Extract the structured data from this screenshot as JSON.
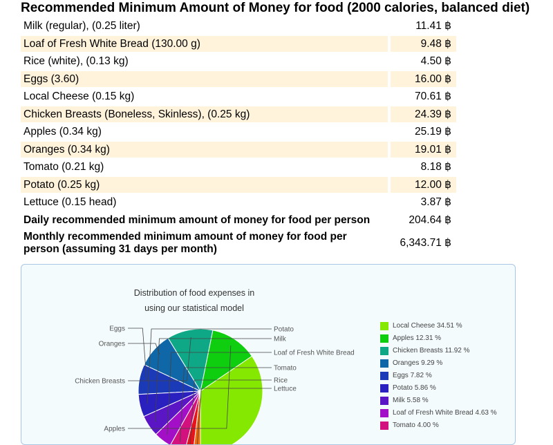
{
  "page": {
    "title": "Recommended Minimum Amount of Money for food (2000 calories, balanced diet)"
  },
  "items": [
    {
      "label": "Milk (regular), (0.25 liter)",
      "value": "11.41 ฿"
    },
    {
      "label": "Loaf of Fresh White Bread (130.00 g)",
      "value": "9.48 ฿"
    },
    {
      "label": "Rice (white), (0.13 kg)",
      "value": "4.50 ฿"
    },
    {
      "label": "Eggs (3.60)",
      "value": "16.00 ฿"
    },
    {
      "label": "Local Cheese (0.15 kg)",
      "value": "70.61 ฿"
    },
    {
      "label": "Chicken Breasts (Boneless, Skinless), (0.25 kg)",
      "value": "24.39 ฿"
    },
    {
      "label": "Apples (0.34 kg)",
      "value": "25.19 ฿"
    },
    {
      "label": "Oranges (0.34 kg)",
      "value": "19.01 ฿"
    },
    {
      "label": "Tomato (0.21 kg)",
      "value": "8.18 ฿"
    },
    {
      "label": "Potato (0.25 kg)",
      "value": "12.00 ฿"
    },
    {
      "label": "Lettuce (0.15 head)",
      "value": "3.87 ฿"
    }
  ],
  "daily": {
    "label": "Daily recommended minimum amount of money for food per person",
    "value": "204.64 ฿"
  },
  "monthly": {
    "label": "Monthly recommended minimum amount of money for food per person (assuming 31 days per month)",
    "value": "6,343.71 ฿"
  },
  "chart_data": {
    "type": "pie",
    "title": "Distribution of food expenses in using our statistical model",
    "slices": [
      {
        "name": "Local Cheese",
        "value": 34.51,
        "legend": "Local Cheese  34.51 %",
        "color": "#84e800"
      },
      {
        "name": "Apples",
        "value": 12.31,
        "legend": "Apples  12.31 %",
        "color": "#0fce0f"
      },
      {
        "name": "Chicken Breasts",
        "value": 11.92,
        "legend": "Chicken Breasts  11.92 %",
        "color": "#0ea887"
      },
      {
        "name": "Oranges",
        "value": 9.29,
        "legend": "Oranges  9.29 %",
        "color": "#1067a8"
      },
      {
        "name": "Eggs",
        "value": 7.82,
        "legend": "Eggs  7.82 %",
        "color": "#1a3ab8"
      },
      {
        "name": "Potato",
        "value": 5.86,
        "legend": "Potato  5.86 %",
        "color": "#2a1fbf"
      },
      {
        "name": "Milk",
        "value": 5.58,
        "legend": "Milk  5.58 %",
        "color": "#5a16c4"
      },
      {
        "name": "Loaf of Fresh White Bread",
        "value": 4.63,
        "legend": "Loaf of Fresh White Bread  4.63 %",
        "color": "#a30fc7"
      },
      {
        "name": "Tomato",
        "value": 4.0,
        "legend": "Tomato  4.00 %",
        "color": "#d2117f"
      },
      {
        "name": "Rice",
        "value": 2.2,
        "legend": null,
        "color": "#e8121c"
      },
      {
        "name": "Lettuce",
        "value": 1.89,
        "legend": null,
        "color": "#f06a0a"
      }
    ],
    "slice_labels_left": [
      "Eggs",
      "Oranges",
      "Chicken Breasts",
      "Apples"
    ],
    "slice_labels_right": [
      "Potato",
      "Milk",
      "Loaf of Fresh White Bread",
      "Tomato",
      "Rice",
      "Lettuce"
    ]
  }
}
